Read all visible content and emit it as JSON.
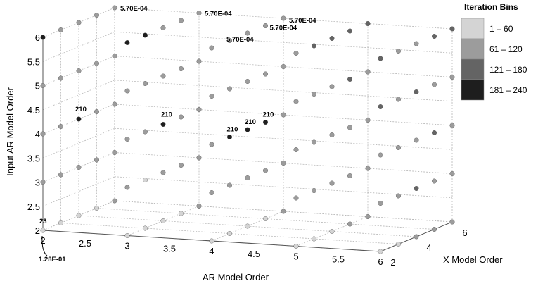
{
  "chart_data": {
    "type": "scatter",
    "title": "",
    "axes": {
      "x": {
        "label": "AR Model Order",
        "ticks": [
          "2",
          "2.5",
          "3",
          "3.5",
          "4",
          "4.5",
          "5",
          "5.5",
          "6"
        ],
        "range": [
          2,
          6
        ]
      },
      "y": {
        "label": "X Model Order",
        "ticks": [
          "2",
          "4",
          "6"
        ],
        "range": [
          2,
          6
        ]
      },
      "z": {
        "label": "Input AR Model Order",
        "ticks": [
          "2",
          "2.5",
          "3",
          "3.5",
          "4",
          "4.5",
          "5",
          "5.5",
          "6"
        ],
        "range": [
          2,
          6
        ]
      }
    },
    "grid": true,
    "legend": {
      "title": "Iteration Bins",
      "placement": "top-right",
      "bins": [
        {
          "label": "1 – 60",
          "color": "#d4d4d4"
        },
        {
          "label": "61 – 120",
          "color": "#9c9c9c"
        },
        {
          "label": "121 – 180",
          "color": "#646464"
        },
        {
          "label": "181 – 240",
          "color": "#1e1e1e"
        }
      ]
    },
    "annotations": [
      {
        "text": "5.70E-04",
        "x": 2,
        "y": 6,
        "z": 6
      },
      {
        "text": "5.70E-04",
        "x": 3,
        "y": 6,
        "z": 6
      },
      {
        "text": "5.70E-04",
        "x": 4,
        "y": 6,
        "z": 6
      },
      {
        "text": "5.70E-04",
        "x": 4,
        "y": 5,
        "z": 6
      },
      {
        "text": "5.70E-04",
        "x": 4,
        "y": 4,
        "z": 6
      },
      {
        "text": "210",
        "x": 2,
        "y": 4,
        "z": 4
      },
      {
        "text": "210",
        "x": 3,
        "y": 4,
        "z": 4
      },
      {
        "text": "210",
        "x": 4,
        "y": 3,
        "z": 4
      },
      {
        "text": "210",
        "x": 4,
        "y": 4,
        "z": 4
      },
      {
        "text": "210",
        "x": 4,
        "y": 5,
        "z": 4
      },
      {
        "text": "23",
        "x": 2,
        "y": 2,
        "z": 2
      },
      {
        "text": "1.28E-01",
        "x": 2,
        "y": 2,
        "z": 2
      }
    ],
    "points_note": "Grid of model orders 2..6 on each axis; bin index 0..3 refers to legend bins.",
    "points": [
      {
        "x": 2,
        "y": 2,
        "z": 2,
        "bin": 0
      },
      {
        "x": 3,
        "y": 2,
        "z": 2,
        "bin": 0
      },
      {
        "x": 4,
        "y": 2,
        "z": 2,
        "bin": 0
      },
      {
        "x": 5,
        "y": 2,
        "z": 2,
        "bin": 0
      },
      {
        "x": 6,
        "y": 2,
        "z": 2,
        "bin": 0
      },
      {
        "x": 2,
        "y": 3,
        "z": 2,
        "bin": 0
      },
      {
        "x": 3,
        "y": 3,
        "z": 2,
        "bin": 0
      },
      {
        "x": 4,
        "y": 3,
        "z": 2,
        "bin": 0
      },
      {
        "x": 5,
        "y": 3,
        "z": 2,
        "bin": 0
      },
      {
        "x": 6,
        "y": 3,
        "z": 2,
        "bin": 0
      },
      {
        "x": 2,
        "y": 4,
        "z": 2,
        "bin": 0
      },
      {
        "x": 3,
        "y": 4,
        "z": 2,
        "bin": 0
      },
      {
        "x": 4,
        "y": 4,
        "z": 2,
        "bin": 0
      },
      {
        "x": 5,
        "y": 4,
        "z": 2,
        "bin": 0
      },
      {
        "x": 6,
        "y": 4,
        "z": 2,
        "bin": 1
      },
      {
        "x": 2,
        "y": 5,
        "z": 2,
        "bin": 0
      },
      {
        "x": 3,
        "y": 5,
        "z": 2,
        "bin": 0
      },
      {
        "x": 4,
        "y": 5,
        "z": 2,
        "bin": 0
      },
      {
        "x": 5,
        "y": 5,
        "z": 2,
        "bin": 1
      },
      {
        "x": 6,
        "y": 5,
        "z": 2,
        "bin": 1
      },
      {
        "x": 2,
        "y": 6,
        "z": 2,
        "bin": 1
      },
      {
        "x": 3,
        "y": 6,
        "z": 2,
        "bin": 1
      },
      {
        "x": 4,
        "y": 6,
        "z": 2,
        "bin": 1
      },
      {
        "x": 5,
        "y": 6,
        "z": 2,
        "bin": 1
      },
      {
        "x": 6,
        "y": 6,
        "z": 2,
        "bin": 1
      },
      {
        "x": 2,
        "y": 2,
        "z": 3,
        "bin": 1
      },
      {
        "x": 3,
        "y": 2,
        "z": 3,
        "bin": 1
      },
      {
        "x": 4,
        "y": 2,
        "z": 3,
        "bin": 1
      },
      {
        "x": 5,
        "y": 2,
        "z": 3,
        "bin": 1
      },
      {
        "x": 6,
        "y": 2,
        "z": 3,
        "bin": 1
      },
      {
        "x": 2,
        "y": 3,
        "z": 3,
        "bin": 1
      },
      {
        "x": 3,
        "y": 3,
        "z": 3,
        "bin": 0
      },
      {
        "x": 4,
        "y": 3,
        "z": 3,
        "bin": 1
      },
      {
        "x": 5,
        "y": 3,
        "z": 3,
        "bin": 1
      },
      {
        "x": 6,
        "y": 3,
        "z": 3,
        "bin": 1
      },
      {
        "x": 2,
        "y": 4,
        "z": 3,
        "bin": 1
      },
      {
        "x": 3,
        "y": 4,
        "z": 3,
        "bin": 1
      },
      {
        "x": 4,
        "y": 4,
        "z": 3,
        "bin": 1
      },
      {
        "x": 5,
        "y": 4,
        "z": 3,
        "bin": 1
      },
      {
        "x": 6,
        "y": 4,
        "z": 3,
        "bin": 2
      },
      {
        "x": 2,
        "y": 5,
        "z": 3,
        "bin": 1
      },
      {
        "x": 3,
        "y": 5,
        "z": 3,
        "bin": 1
      },
      {
        "x": 4,
        "y": 5,
        "z": 3,
        "bin": 1
      },
      {
        "x": 5,
        "y": 5,
        "z": 3,
        "bin": 1
      },
      {
        "x": 6,
        "y": 5,
        "z": 3,
        "bin": 1
      },
      {
        "x": 2,
        "y": 6,
        "z": 3,
        "bin": 1
      },
      {
        "x": 3,
        "y": 6,
        "z": 3,
        "bin": 1
      },
      {
        "x": 4,
        "y": 6,
        "z": 3,
        "bin": 1
      },
      {
        "x": 5,
        "y": 6,
        "z": 3,
        "bin": 1
      },
      {
        "x": 6,
        "y": 6,
        "z": 3,
        "bin": 1
      },
      {
        "x": 2,
        "y": 2,
        "z": 4,
        "bin": 1
      },
      {
        "x": 3,
        "y": 2,
        "z": 4,
        "bin": 1
      },
      {
        "x": 4,
        "y": 2,
        "z": 4,
        "bin": 1
      },
      {
        "x": 5,
        "y": 2,
        "z": 4,
        "bin": 1
      },
      {
        "x": 6,
        "y": 2,
        "z": 4,
        "bin": 1
      },
      {
        "x": 2,
        "y": 3,
        "z": 4,
        "bin": 1
      },
      {
        "x": 3,
        "y": 3,
        "z": 4,
        "bin": 1
      },
      {
        "x": 4,
        "y": 3,
        "z": 4,
        "bin": 3
      },
      {
        "x": 5,
        "y": 3,
        "z": 4,
        "bin": 1
      },
      {
        "x": 6,
        "y": 3,
        "z": 4,
        "bin": 1
      },
      {
        "x": 2,
        "y": 4,
        "z": 4,
        "bin": 3
      },
      {
        "x": 3,
        "y": 4,
        "z": 4,
        "bin": 3
      },
      {
        "x": 4,
        "y": 4,
        "z": 4,
        "bin": 3
      },
      {
        "x": 5,
        "y": 4,
        "z": 4,
        "bin": 1
      },
      {
        "x": 6,
        "y": 4,
        "z": 4,
        "bin": 1
      },
      {
        "x": 2,
        "y": 5,
        "z": 4,
        "bin": 1
      },
      {
        "x": 3,
        "y": 5,
        "z": 4,
        "bin": 1
      },
      {
        "x": 4,
        "y": 5,
        "z": 4,
        "bin": 3
      },
      {
        "x": 5,
        "y": 5,
        "z": 4,
        "bin": 1
      },
      {
        "x": 6,
        "y": 5,
        "z": 4,
        "bin": 2
      },
      {
        "x": 2,
        "y": 6,
        "z": 4,
        "bin": 1
      },
      {
        "x": 3,
        "y": 6,
        "z": 4,
        "bin": 1
      },
      {
        "x": 4,
        "y": 6,
        "z": 4,
        "bin": 1
      },
      {
        "x": 5,
        "y": 6,
        "z": 4,
        "bin": 1
      },
      {
        "x": 6,
        "y": 6,
        "z": 4,
        "bin": 1
      },
      {
        "x": 2,
        "y": 2,
        "z": 5,
        "bin": 1
      },
      {
        "x": 3,
        "y": 2,
        "z": 5,
        "bin": 1
      },
      {
        "x": 4,
        "y": 2,
        "z": 5,
        "bin": 1
      },
      {
        "x": 5,
        "y": 2,
        "z": 5,
        "bin": 1
      },
      {
        "x": 6,
        "y": 2,
        "z": 5,
        "bin": 2
      },
      {
        "x": 2,
        "y": 3,
        "z": 5,
        "bin": 1
      },
      {
        "x": 3,
        "y": 3,
        "z": 5,
        "bin": 1
      },
      {
        "x": 4,
        "y": 3,
        "z": 5,
        "bin": 1
      },
      {
        "x": 5,
        "y": 3,
        "z": 5,
        "bin": 1
      },
      {
        "x": 6,
        "y": 3,
        "z": 5,
        "bin": 1
      },
      {
        "x": 2,
        "y": 4,
        "z": 5,
        "bin": 1
      },
      {
        "x": 3,
        "y": 4,
        "z": 5,
        "bin": 1
      },
      {
        "x": 4,
        "y": 4,
        "z": 5,
        "bin": 1
      },
      {
        "x": 5,
        "y": 4,
        "z": 5,
        "bin": 1
      },
      {
        "x": 6,
        "y": 4,
        "z": 5,
        "bin": 2
      },
      {
        "x": 2,
        "y": 5,
        "z": 5,
        "bin": 1
      },
      {
        "x": 3,
        "y": 5,
        "z": 5,
        "bin": 1
      },
      {
        "x": 4,
        "y": 5,
        "z": 5,
        "bin": 1
      },
      {
        "x": 5,
        "y": 5,
        "z": 5,
        "bin": 2
      },
      {
        "x": 6,
        "y": 5,
        "z": 5,
        "bin": 1
      },
      {
        "x": 2,
        "y": 6,
        "z": 5,
        "bin": 1
      },
      {
        "x": 3,
        "y": 6,
        "z": 5,
        "bin": 1
      },
      {
        "x": 4,
        "y": 6,
        "z": 5,
        "bin": 1
      },
      {
        "x": 5,
        "y": 6,
        "z": 5,
        "bin": 1
      },
      {
        "x": 6,
        "y": 6,
        "z": 5,
        "bin": 1
      },
      {
        "x": 2,
        "y": 2,
        "z": 6,
        "bin": 3
      },
      {
        "x": 3,
        "y": 2,
        "z": 6,
        "bin": 3
      },
      {
        "x": 4,
        "y": 2,
        "z": 6,
        "bin": 1
      },
      {
        "x": 5,
        "y": 2,
        "z": 6,
        "bin": 1
      },
      {
        "x": 6,
        "y": 2,
        "z": 6,
        "bin": 2
      },
      {
        "x": 2,
        "y": 3,
        "z": 6,
        "bin": 1
      },
      {
        "x": 3,
        "y": 3,
        "z": 6,
        "bin": 3
      },
      {
        "x": 4,
        "y": 3,
        "z": 6,
        "bin": 1
      },
      {
        "x": 5,
        "y": 3,
        "z": 6,
        "bin": 2
      },
      {
        "x": 6,
        "y": 3,
        "z": 6,
        "bin": 1
      },
      {
        "x": 2,
        "y": 4,
        "z": 6,
        "bin": 1
      },
      {
        "x": 3,
        "y": 4,
        "z": 6,
        "bin": 1
      },
      {
        "x": 4,
        "y": 4,
        "z": 6,
        "bin": 1
      },
      {
        "x": 5,
        "y": 4,
        "z": 6,
        "bin": 2
      },
      {
        "x": 6,
        "y": 4,
        "z": 6,
        "bin": 1
      },
      {
        "x": 2,
        "y": 5,
        "z": 6,
        "bin": 1
      },
      {
        "x": 3,
        "y": 5,
        "z": 6,
        "bin": 1
      },
      {
        "x": 4,
        "y": 5,
        "z": 6,
        "bin": 1
      },
      {
        "x": 5,
        "y": 5,
        "z": 6,
        "bin": 2
      },
      {
        "x": 6,
        "y": 5,
        "z": 6,
        "bin": 2
      },
      {
        "x": 2,
        "y": 6,
        "z": 6,
        "bin": 1
      },
      {
        "x": 3,
        "y": 6,
        "z": 6,
        "bin": 1
      },
      {
        "x": 4,
        "y": 6,
        "z": 6,
        "bin": 1
      },
      {
        "x": 5,
        "y": 6,
        "z": 6,
        "bin": 2
      },
      {
        "x": 6,
        "y": 6,
        "z": 6,
        "bin": 2
      }
    ]
  }
}
